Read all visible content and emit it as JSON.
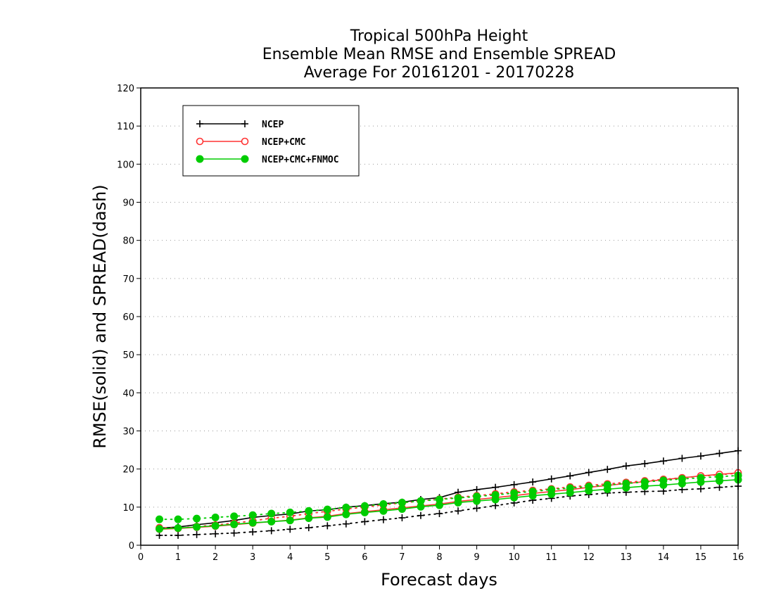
{
  "chart_data": {
    "type": "line",
    "title_lines": [
      "Tropical 500hPa Height",
      "Ensemble Mean RMSE and Ensemble SPREAD",
      "Average For 20161201 - 20170228"
    ],
    "xlabel": "Forecast days",
    "ylabel": "RMSE(solid) and SPREAD(dash)",
    "xlim": [
      0,
      16
    ],
    "ylim": [
      0,
      120
    ],
    "xticks": [
      0,
      1,
      2,
      3,
      4,
      5,
      6,
      7,
      8,
      9,
      10,
      11,
      12,
      13,
      14,
      15,
      16
    ],
    "yticks": [
      0,
      10,
      20,
      30,
      40,
      50,
      60,
      70,
      80,
      90,
      100,
      110,
      120
    ],
    "grid": "horizontal dotted",
    "legend_position": "top-left",
    "x": [
      0.5,
      1,
      1.5,
      2,
      2.5,
      3,
      3.5,
      4,
      4.5,
      5,
      5.5,
      6,
      6.5,
      7,
      7.5,
      8,
      8.5,
      9,
      9.5,
      10,
      10.5,
      11,
      11.5,
      12,
      12.5,
      13,
      13.5,
      14,
      14.5,
      15,
      15.5,
      16
    ],
    "series": [
      {
        "name": "NCEP",
        "color": "#000000",
        "marker": "plus",
        "rmse": [
          4.5,
          4.8,
          5.4,
          5.9,
          6.5,
          7.3,
          7.8,
          8.2,
          9.0,
          9.3,
          10.0,
          10.4,
          10.9,
          11.3,
          12.0,
          12.5,
          13.9,
          14.6,
          15.2,
          15.9,
          16.6,
          17.4,
          18.2,
          19.1,
          19.9,
          20.8,
          21.4,
          22.1,
          22.8,
          23.4,
          24.1,
          24.8
        ],
        "spread": [
          2.6,
          2.6,
          2.8,
          3.0,
          3.2,
          3.5,
          3.8,
          4.2,
          4.6,
          5.1,
          5.6,
          6.2,
          6.7,
          7.2,
          7.8,
          8.3,
          9.0,
          9.7,
          10.4,
          11.1,
          11.8,
          12.3,
          12.9,
          13.3,
          13.7,
          13.9,
          14.1,
          14.2,
          14.6,
          14.8,
          15.2,
          15.5
        ]
      },
      {
        "name": "NCEP+CMC",
        "color": "#ff3333",
        "marker": "open-circle",
        "rmse": [
          4.2,
          4.4,
          4.7,
          5.0,
          5.4,
          5.8,
          6.2,
          6.6,
          7.2,
          7.6,
          8.3,
          8.8,
          9.3,
          9.8,
          10.3,
          10.8,
          11.5,
          12.0,
          12.5,
          13.0,
          13.6,
          14.1,
          14.6,
          15.2,
          15.7,
          16.2,
          16.7,
          17.2,
          17.7,
          18.2,
          18.6,
          19.0
        ],
        "spread": [
          4.6,
          4.5,
          4.9,
          5.3,
          5.8,
          6.4,
          7.1,
          7.6,
          8.3,
          8.9,
          9.5,
          10.0,
          10.6,
          11.1,
          11.6,
          12.1,
          12.6,
          13.0,
          13.5,
          14.0,
          14.4,
          14.8,
          15.3,
          15.7,
          16.1,
          16.5,
          16.9,
          17.3,
          17.7,
          18.1,
          18.5,
          18.9
        ]
      },
      {
        "name": "NCEP+CMC+FNMOC",
        "color": "#00cc00",
        "marker": "filled-circle",
        "rmse": [
          4.3,
          4.5,
          4.8,
          5.1,
          5.5,
          5.9,
          6.2,
          6.5,
          7.1,
          7.4,
          8.1,
          8.6,
          9.0,
          9.5,
          10.1,
          10.5,
          11.2,
          11.6,
          12.0,
          12.5,
          13.0,
          13.4,
          13.8,
          14.3,
          14.7,
          15.1,
          15.5,
          15.8,
          16.2,
          16.6,
          16.9,
          17.2
        ],
        "spread": [
          6.8,
          6.8,
          7.0,
          7.3,
          7.6,
          7.9,
          8.3,
          8.6,
          9.0,
          9.4,
          9.9,
          10.3,
          10.8,
          11.2,
          11.6,
          12.0,
          12.4,
          12.8,
          13.2,
          13.7,
          14.1,
          14.6,
          15.0,
          15.4,
          15.8,
          16.2,
          16.6,
          17.0,
          17.4,
          17.7,
          18.0,
          18.3
        ]
      }
    ]
  }
}
